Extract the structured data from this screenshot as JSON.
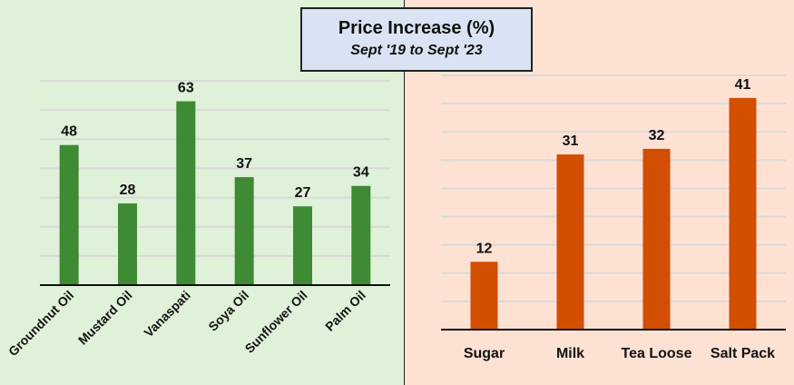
{
  "title": "Price Increase (%)",
  "subtitle": "Sept '19 to Sept '23",
  "colors": {
    "left_background": "#dff1d8",
    "right_background": "#fde2d4",
    "title_box": "#dae3f3"
  },
  "chart_data": [
    {
      "type": "bar",
      "categories": [
        "Groundnut Oil",
        "Mustard Oil",
        "Vanaspati",
        "Soya Oil",
        "Sunflower Oil",
        "Palm Oil"
      ],
      "values": [
        48,
        28,
        63,
        37,
        27,
        34
      ],
      "data_labels": [
        "48",
        "28",
        "63",
        "37",
        "27",
        "34"
      ],
      "ylim": [
        0,
        70
      ],
      "ytick_step": 10,
      "grid": true,
      "color": "#3f8a35",
      "xtick_rotation": "-45deg"
    },
    {
      "type": "bar",
      "categories": [
        "Sugar",
        "Milk",
        "Tea Loose",
        "Salt Pack"
      ],
      "values": [
        12,
        31,
        32,
        41
      ],
      "data_labels": [
        "12",
        "31",
        "32",
        "41"
      ],
      "ylim": [
        0,
        45
      ],
      "ytick_step": 5,
      "grid": true,
      "color": "#d24e00"
    }
  ]
}
